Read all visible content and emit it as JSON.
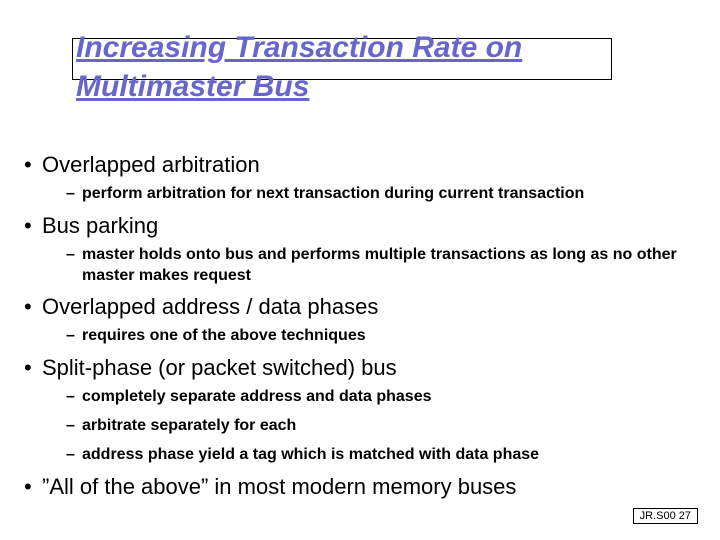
{
  "title": "Increasing Transaction Rate on Multimaster Bus",
  "bullets": [
    {
      "text": "Overlapped arbitration",
      "subs": [
        "perform arbitration for next transaction during current transaction"
      ]
    },
    {
      "text": "Bus parking",
      "subs": [
        "master holds onto bus and performs multiple transactions as long as no other master makes request"
      ]
    },
    {
      "text": "Overlapped address / data phases",
      "subs": [
        "requires one of the above techniques"
      ]
    },
    {
      "text": "Split-phase (or packet switched) bus",
      "subs": [
        "completely separate address and data phases",
        "arbitrate separately for each",
        "address phase yield a tag which is matched with data phase"
      ]
    },
    {
      "text": "”All of the above” in most modern memory buses",
      "subs": []
    }
  ],
  "footer": "JR.S00 27",
  "colors": {
    "title": "#6666cc",
    "text": "#000000",
    "background": "#ffffff"
  }
}
